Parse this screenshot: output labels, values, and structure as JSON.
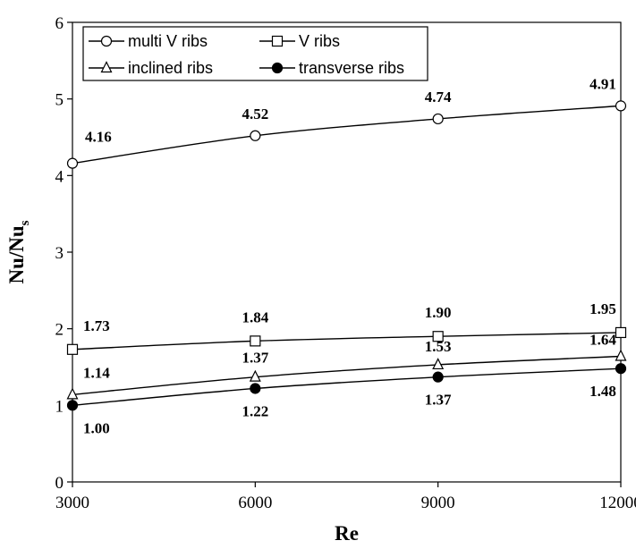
{
  "chart_data": {
    "type": "line",
    "xlabel": "Re",
    "ylabel": {
      "main": "Nu/Nu",
      "subscript": "s"
    },
    "xlim": [
      3000,
      12000
    ],
    "ylim": [
      0,
      6
    ],
    "xticks": [
      "3000",
      "6000",
      "9000",
      "12000"
    ],
    "yticks": [
      "0",
      "1",
      "2",
      "3",
      "4",
      "5",
      "6"
    ],
    "grid": false,
    "legend_position": "top",
    "x": [
      3000,
      6000,
      9000,
      12000
    ],
    "series": [
      {
        "name": "multi V ribs",
        "marker": "open-circle",
        "values": [
          4.16,
          4.52,
          4.74,
          4.91
        ],
        "labels": [
          "4.16",
          "4.52",
          "4.74",
          "4.91"
        ]
      },
      {
        "name": "V ribs",
        "marker": "open-square",
        "values": [
          1.73,
          1.84,
          1.9,
          1.95
        ],
        "labels": [
          "1.73",
          "1.84",
          "1.90",
          "1.95"
        ]
      },
      {
        "name": "inclined ribs",
        "marker": "open-triangle",
        "values": [
          1.14,
          1.37,
          1.53,
          1.64
        ],
        "labels": [
          "1.14",
          "1.37",
          "1.53",
          "1.64"
        ]
      },
      {
        "name": "transverse ribs",
        "marker": "filled-circle",
        "values": [
          1.0,
          1.22,
          1.37,
          1.48
        ],
        "labels": [
          "1.00",
          "1.22",
          "1.37",
          "1.48"
        ]
      }
    ]
  }
}
